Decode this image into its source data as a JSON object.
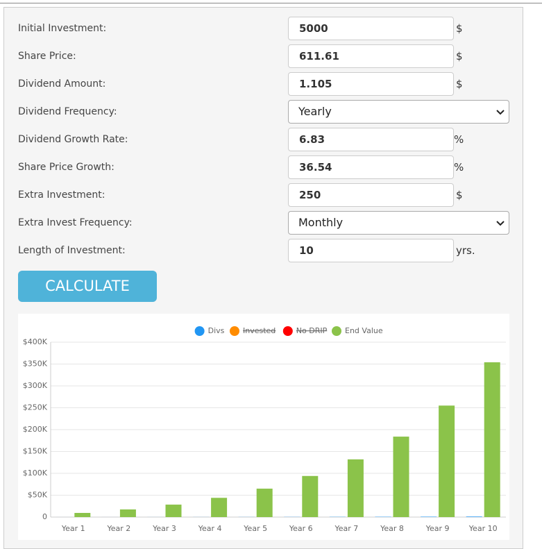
{
  "form": {
    "fields": [
      {
        "label": "Initial Investment:",
        "value": "5000",
        "unit": "$",
        "kind": "input"
      },
      {
        "label": "Share Price:",
        "value": "611.61",
        "unit": "$",
        "kind": "input"
      },
      {
        "label": "Dividend Amount:",
        "value": "1.105",
        "unit": "$",
        "kind": "input"
      },
      {
        "label": "Dividend Frequency:",
        "value": "Yearly",
        "kind": "select"
      },
      {
        "label": "Dividend Growth Rate:",
        "value": "6.83",
        "unit": "%",
        "kind": "input"
      },
      {
        "label": "Share Price Growth:",
        "value": "36.54",
        "unit": "%",
        "kind": "input"
      },
      {
        "label": "Extra Investment:",
        "value": "250",
        "unit": "$",
        "kind": "input"
      },
      {
        "label": "Extra Invest Frequency:",
        "value": "Monthly",
        "kind": "select"
      },
      {
        "label": "Length of Investment:",
        "value": "10",
        "unit": "yrs.",
        "kind": "input"
      }
    ],
    "button": "CALCULATE"
  },
  "chart_data": {
    "type": "bar",
    "categories": [
      "Year 1",
      "Year 2",
      "Year 3",
      "Year 4",
      "Year 5",
      "Year 6",
      "Year 7",
      "Year 8",
      "Year 9",
      "Year 10"
    ],
    "series": [
      {
        "name": "Divs",
        "color": "#2196f3",
        "values": [
          10,
          40,
          80,
          140,
          220,
          330,
          470,
          650,
          880,
          1170
        ]
      },
      {
        "name": "Invested",
        "color": "#ff8c00",
        "hidden": true
      },
      {
        "name": "No DRIP",
        "color": "#ff0000",
        "hidden": true
      },
      {
        "name": "End Value",
        "color": "#8bc34a",
        "values": [
          9500,
          17500,
          28500,
          44000,
          65000,
          94000,
          132000,
          184000,
          255000,
          354000
        ]
      }
    ],
    "ylim": [
      0,
      400000
    ],
    "yticks": [
      0,
      {
        "value": 50000,
        "label": "$50K"
      },
      {
        "value": 100000,
        "label": "$100K"
      },
      {
        "value": 150000,
        "label": "$150K"
      },
      {
        "value": 200000,
        "label": "$200K"
      },
      {
        "value": 250000,
        "label": "$250K"
      },
      {
        "value": 300000,
        "label": "$300K"
      },
      {
        "value": 350000,
        "label": "$350K"
      },
      {
        "value": 400000,
        "label": "$400K"
      }
    ],
    "grid": true,
    "legend": "top"
  }
}
